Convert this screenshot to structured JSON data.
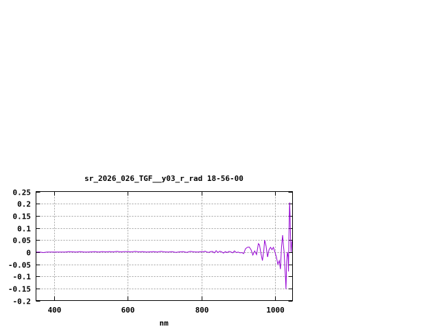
{
  "chart_data": {
    "type": "line",
    "title": "sr_2026_026_TGF__y03_r_rad 18-56-00",
    "xlabel": "nm",
    "ylabel": "",
    "xlim": [
      350,
      1048
    ],
    "ylim": [
      -0.2,
      0.25
    ],
    "xticks": [
      400,
      600,
      800,
      1000
    ],
    "yticks": [
      0.25,
      0.2,
      0.15,
      0.1,
      0.05,
      0,
      -0.05,
      -0.1,
      -0.15,
      -0.2
    ],
    "ytick_labels": [
      "0.25",
      "0.2",
      "0.15",
      "0.1",
      "0.05",
      "0",
      "-0.05",
      "-0.1",
      "-0.15",
      "-0.2"
    ],
    "grid": true,
    "line_color": "#9400d3",
    "series": [
      {
        "x": [
          350,
          360,
          370,
          380,
          390,
          400,
          410,
          420,
          430,
          440,
          450,
          460,
          470,
          480,
          490,
          500,
          510,
          520,
          530,
          540,
          550,
          560,
          570,
          580,
          590,
          600,
          610,
          620,
          630,
          640,
          650,
          660,
          670,
          680,
          690,
          700,
          710,
          720,
          730,
          740,
          750,
          760,
          770,
          780,
          790,
          800,
          805,
          810,
          815,
          820,
          825,
          830,
          835,
          840,
          845,
          850,
          855,
          860,
          865,
          870,
          875,
          880,
          885,
          890,
          895,
          900,
          905,
          910,
          915,
          920,
          925,
          930,
          935,
          940,
          945,
          950,
          955,
          958,
          962,
          966,
          970,
          972,
          976,
          980,
          984,
          988,
          992,
          996,
          1000,
          1004,
          1008,
          1012,
          1015,
          1018,
          1021,
          1023,
          1025,
          1027,
          1029,
          1030,
          1032,
          1034,
          1036,
          1037,
          1038,
          1040,
          1041,
          1042,
          1043,
          1044,
          1046,
          1048
        ],
        "y": [
          0,
          0,
          -0.002,
          0,
          0,
          0,
          0,
          0,
          0,
          0.002,
          0.001,
          0,
          0.002,
          0,
          0,
          0.001,
          0.002,
          0,
          0.002,
          0.001,
          0.002,
          0.001,
          0.003,
          0.001,
          0.002,
          0.002,
          0.001,
          0.003,
          0.001,
          0.002,
          0,
          0.001,
          0.002,
          0,
          0.003,
          0.001,
          0,
          0.002,
          -0.001,
          0.001,
          0.002,
          -0.001,
          0.003,
          0.001,
          0,
          0.002,
          0.001,
          0.004,
          0,
          -0.001,
          0.002,
          0.003,
          -0.003,
          0.006,
          -0.002,
          0.004,
          0.001,
          -0.004,
          0.002,
          -0.002,
          0.003,
          0.001,
          -0.003,
          0.005,
          -0.002,
          0,
          -0.003,
          -0.002,
          -0.006,
          0.014,
          0.02,
          0.021,
          0.01,
          -0.012,
          0.005,
          -0.01,
          0.035,
          0.03,
          -0.005,
          -0.035,
          0.01,
          0.05,
          0.025,
          -0.02,
          0.01,
          0.02,
          0.01,
          0.02,
          0.0,
          -0.02,
          -0.05,
          -0.035,
          -0.07,
          0.02,
          0.07,
          0.03,
          0.0,
          -0.06,
          -0.11,
          -0.153,
          -0.04,
          0.0,
          -0.02,
          -0.08,
          0.05,
          0.205,
          0.17,
          0.1,
          0.04,
          0.0,
          0.04,
          0.05
        ]
      }
    ]
  }
}
